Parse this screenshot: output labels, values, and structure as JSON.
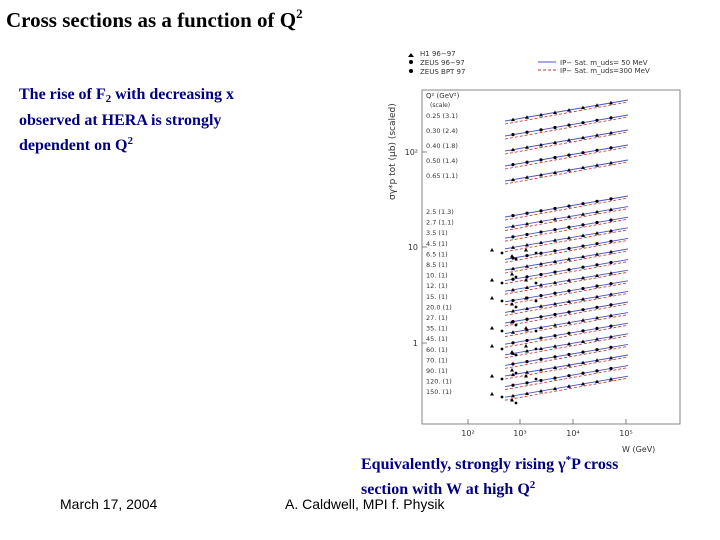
{
  "slide": {
    "title_main": "Cross sections as a function of Q",
    "title_sup": "2",
    "left_line1_a": "The rise of F",
    "left_line1_sub": "2",
    "left_line1_b": " with decreasing x",
    "left_line2": "observed at HERA is strongly",
    "left_line3_a": "dependent on Q",
    "left_line3_sup": "2",
    "bottom_line1_a": "Equivalently, strongly rising γ",
    "bottom_line1_sup": "*",
    "bottom_line1_b": "P cross",
    "bottom_line2_a": "section with W at high Q",
    "bottom_line2_sup": "2",
    "footer_date": "March 17, 2004",
    "footer_author": "A. Caldwell, MPI f. Physik"
  },
  "chart_data": {
    "type": "scatter",
    "legend": {
      "markers": [
        "H1 96−97",
        "ZEUS 96−97",
        "ZEUS BPT 97"
      ],
      "lines": [
        "IP− Sat. m_uds= 50 MeV",
        "IP− Sat. m_uds=300 MeV"
      ],
      "q2_header": "Q² (GeV²)",
      "scale_header": "(scale)"
    },
    "ylabel": "σγ*p tot (μb) (scaled)",
    "xlabel": "W (GeV)",
    "y_ticks": [
      "10²",
      "10",
      "1"
    ],
    "x_ticks": [
      "10²",
      "10³",
      "10⁴",
      "10⁵"
    ],
    "q2_labels": [
      "0.25 (3.1)",
      "0.30 (2.4)",
      "0.40 (1.8)",
      "0.50 (1.4)",
      "0.65 (1.1)",
      "2.5 (1.3)",
      "2.7 (1.1)",
      "3.5 (1)",
      "4.5 (1)",
      "6.5 (1)",
      "8.5 (1)",
      "10. (1)",
      "12. (1)",
      "15. (1)",
      "20.0 (1)",
      "27. (1)",
      "35. (1)",
      "45. (1)",
      "60. (1)",
      "70. (1)",
      "90. (1)",
      "120. (1)",
      "150. (1)"
    ],
    "colors": {
      "solid_fit": "#5050c0",
      "dashed_fit": "#c03030",
      "marker": "#000000"
    }
  }
}
